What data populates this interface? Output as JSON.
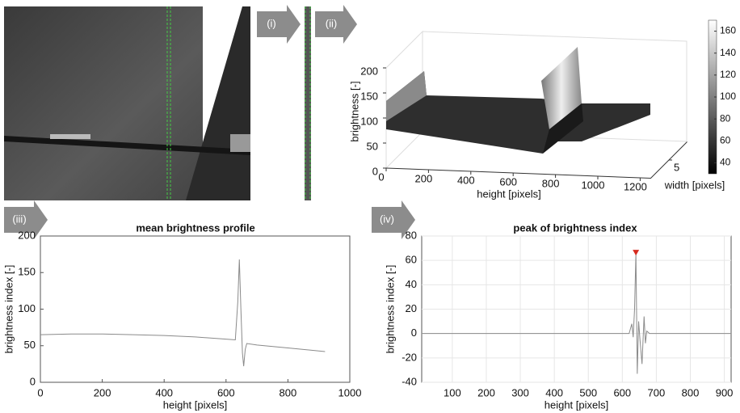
{
  "panel_labels": [
    "(i)",
    "(ii)",
    "(iii)",
    "(iv)"
  ],
  "chart_data": [
    {
      "type": "surface3d",
      "xlabel": "height [pixels]",
      "ylabel": "brightness [-]",
      "zlabel": "width [pixels]",
      "xlim": [
        0,
        1250
      ],
      "xticks": [
        0,
        200,
        400,
        600,
        800,
        1000,
        1200
      ],
      "ylim": [
        0,
        200
      ],
      "yticks": [
        0,
        50,
        100,
        150,
        200
      ],
      "zlim": [
        0,
        10
      ],
      "zticks": [
        5
      ],
      "clim": [
        30,
        170
      ],
      "cticks": [
        40,
        60,
        80,
        100,
        120,
        140,
        160
      ]
    },
    {
      "type": "line",
      "title": "mean brightness profile",
      "xlabel": "height [pixels]",
      "ylabel": "brightness index [-]",
      "xlim": [
        0,
        1000
      ],
      "xticks": [
        0,
        200,
        400,
        600,
        800,
        1000
      ],
      "ylim": [
        0,
        200
      ],
      "yticks": [
        0,
        50,
        100,
        150,
        200
      ],
      "grid": false,
      "series": [
        {
          "color": "#8a8a8a",
          "x": [
            0,
            100,
            200,
            300,
            400,
            500,
            600,
            630,
            638,
            643,
            648,
            653,
            657,
            662,
            667,
            700,
            800,
            920
          ],
          "values": [
            65,
            66,
            66,
            65,
            64,
            62,
            59,
            58,
            110,
            168,
            100,
            40,
            22,
            45,
            53,
            51,
            47,
            42
          ]
        }
      ]
    },
    {
      "type": "line",
      "title": "peak of brightness index",
      "xlabel": "height [pixels]",
      "ylabel": "brightness index [-]",
      "xlim": [
        10,
        920
      ],
      "xticks": [
        100,
        200,
        300,
        400,
        500,
        600,
        700,
        800,
        900
      ],
      "ylim": [
        -40,
        80
      ],
      "yticks": [
        -40,
        -20,
        0,
        20,
        40,
        60,
        80
      ],
      "grid": true,
      "series": [
        {
          "color": "#8a8a8a",
          "x": [
            10,
            100,
            200,
            300,
            400,
            500,
            600,
            620,
            628,
            632,
            636,
            640,
            644,
            648,
            652,
            658,
            664,
            668,
            672,
            680,
            800,
            920
          ],
          "values": [
            0,
            0,
            0,
            0,
            0,
            0,
            0,
            0,
            8,
            -3,
            20,
            66,
            -33,
            10,
            -5,
            -25,
            14,
            -8,
            2,
            0,
            0,
            0
          ]
        },
        {
          "color": "#d62a1e",
          "marker": "triangle",
          "x": [
            640
          ],
          "values": [
            66
          ]
        }
      ]
    }
  ]
}
